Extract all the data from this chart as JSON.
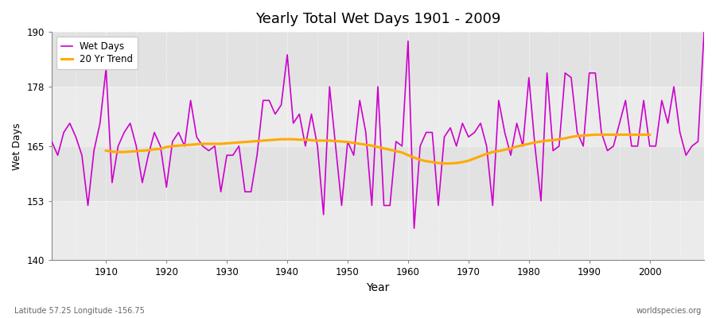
{
  "title": "Yearly Total Wet Days 1901 - 2009",
  "xlabel": "Year",
  "ylabel": "Wet Days",
  "bottom_left_label": "Latitude 57.25 Longitude -156.75",
  "bottom_right_label": "worldspecies.org",
  "ylim": [
    140,
    190
  ],
  "yticks": [
    140,
    153,
    165,
    178,
    190
  ],
  "line_color": "#cc00cc",
  "trend_color": "#ffaa00",
  "bg_color": "#ffffff",
  "plot_bg_light": "#eeeeee",
  "plot_bg_dark": "#e0e0e0",
  "years": [
    1901,
    1902,
    1903,
    1904,
    1905,
    1906,
    1907,
    1908,
    1909,
    1910,
    1911,
    1912,
    1913,
    1914,
    1915,
    1916,
    1917,
    1918,
    1919,
    1920,
    1921,
    1922,
    1923,
    1924,
    1925,
    1926,
    1927,
    1928,
    1929,
    1930,
    1931,
    1932,
    1933,
    1934,
    1935,
    1936,
    1937,
    1938,
    1939,
    1940,
    1941,
    1942,
    1943,
    1944,
    1945,
    1946,
    1947,
    1948,
    1949,
    1950,
    1951,
    1952,
    1953,
    1954,
    1955,
    1956,
    1957,
    1958,
    1959,
    1960,
    1961,
    1962,
    1963,
    1964,
    1965,
    1966,
    1967,
    1968,
    1969,
    1970,
    1971,
    1972,
    1973,
    1974,
    1975,
    1976,
    1977,
    1978,
    1979,
    1980,
    1981,
    1982,
    1983,
    1984,
    1985,
    1986,
    1987,
    1988,
    1989,
    1990,
    1991,
    1992,
    1993,
    1994,
    1995,
    1996,
    1997,
    1998,
    1999,
    2000,
    2001,
    2002,
    2003,
    2004,
    2005,
    2006,
    2007,
    2008,
    2009
  ],
  "wet_days": [
    166,
    163,
    168,
    170,
    167,
    163,
    152,
    164,
    170,
    182,
    157,
    165,
    168,
    170,
    165,
    157,
    163,
    168,
    165,
    156,
    166,
    168,
    165,
    175,
    167,
    165,
    164,
    165,
    155,
    163,
    163,
    165,
    155,
    155,
    163,
    175,
    175,
    172,
    174,
    185,
    170,
    172,
    165,
    172,
    165,
    150,
    178,
    165,
    152,
    166,
    163,
    175,
    168,
    152,
    178,
    152,
    152,
    166,
    165,
    188,
    147,
    165,
    168,
    168,
    152,
    167,
    169,
    165,
    170,
    167,
    168,
    170,
    165,
    152,
    175,
    168,
    163,
    170,
    165,
    180,
    165,
    153,
    181,
    164,
    165,
    181,
    180,
    168,
    165,
    181,
    181,
    168,
    164,
    165,
    170,
    175,
    165,
    165,
    175,
    165,
    165,
    175,
    170,
    178,
    168,
    163,
    165,
    166,
    190
  ],
  "trend_years": [
    1910,
    1911,
    1912,
    1913,
    1914,
    1915,
    1916,
    1917,
    1918,
    1919,
    1920,
    1921,
    1922,
    1923,
    1924,
    1925,
    1926,
    1927,
    1928,
    1929,
    1930,
    1931,
    1932,
    1933,
    1934,
    1935,
    1936,
    1937,
    1938,
    1939,
    1940,
    1941,
    1942,
    1943,
    1944,
    1945,
    1946,
    1947,
    1948,
    1949,
    1950,
    1951,
    1952,
    1953,
    1954,
    1955,
    1956,
    1957,
    1958,
    1959,
    1960,
    1961,
    1962,
    1963,
    1964,
    1965,
    1966,
    1967,
    1968,
    1969,
    1970,
    1971,
    1972,
    1973,
    1974,
    1975,
    1976,
    1977,
    1978,
    1979,
    1980,
    1981,
    1982,
    1983,
    1984,
    1985,
    1986,
    1987,
    1988,
    1989,
    1990,
    1991,
    1992,
    1993,
    1994,
    1995,
    1996,
    1997,
    1998,
    1999,
    2000
  ],
  "trend_values": [
    164.0,
    163.8,
    163.7,
    163.7,
    163.8,
    163.9,
    164.0,
    164.1,
    164.3,
    164.4,
    164.8,
    165.0,
    165.1,
    165.2,
    165.3,
    165.4,
    165.5,
    165.5,
    165.5,
    165.5,
    165.6,
    165.7,
    165.8,
    165.9,
    166.0,
    166.1,
    166.2,
    166.3,
    166.4,
    166.5,
    166.5,
    166.5,
    166.4,
    166.4,
    166.3,
    166.2,
    166.2,
    166.2,
    166.1,
    166.0,
    165.9,
    165.7,
    165.5,
    165.3,
    165.1,
    164.8,
    164.5,
    164.2,
    163.9,
    163.6,
    163.0,
    162.5,
    162.0,
    161.7,
    161.5,
    161.3,
    161.2,
    161.2,
    161.3,
    161.5,
    161.8,
    162.3,
    162.8,
    163.3,
    163.7,
    163.9,
    164.2,
    164.5,
    164.9,
    165.2,
    165.5,
    165.8,
    166.0,
    166.2,
    166.3,
    166.5,
    166.7,
    167.0,
    167.2,
    167.3,
    167.4,
    167.5,
    167.5,
    167.5,
    167.5,
    167.5,
    167.5,
    167.5,
    167.5,
    167.5,
    167.5
  ]
}
